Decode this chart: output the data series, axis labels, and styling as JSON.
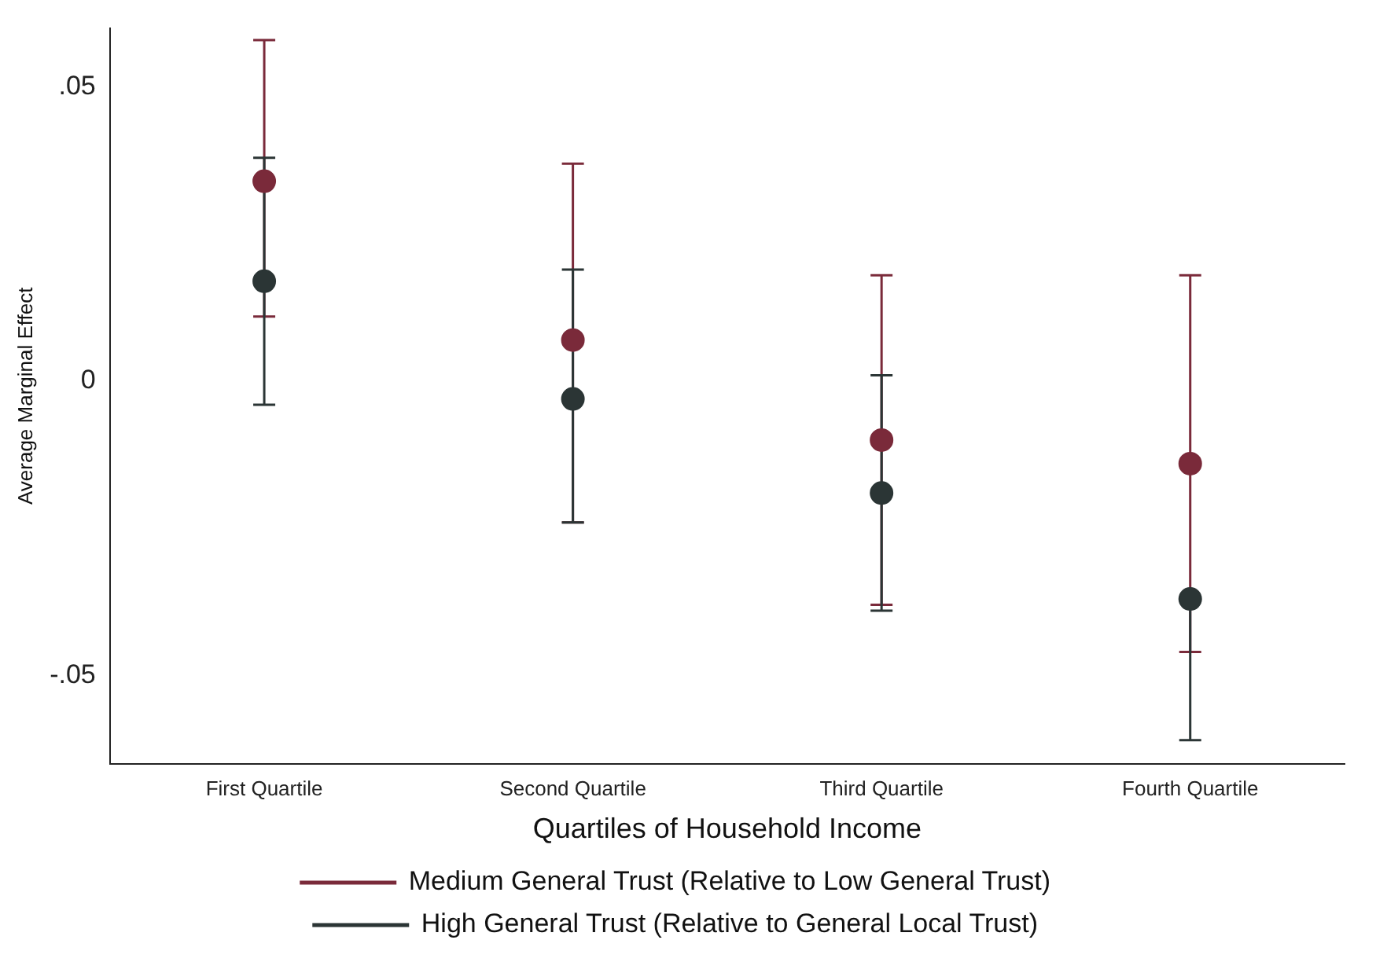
{
  "chart_data": {
    "type": "scatter",
    "xlabel": "Quartiles of Household Income",
    "ylabel": "Average Marginal Effect",
    "categories": [
      "First Quartile",
      "Second Quartile",
      "Third Quartile",
      "Fourth Quartile"
    ],
    "ylim": [
      -0.065,
      0.06
    ],
    "yticks": [
      {
        "value": -0.05,
        "label": "-.05"
      },
      0,
      {
        "value": 0.05,
        "label": ".05"
      }
    ],
    "grid": false,
    "legend": "bottom",
    "marker": "circle",
    "series": [
      {
        "name": "Medium General Trust (Relative to Low General Trust)",
        "color": "#7a2a3a",
        "values": [
          0.034,
          0.007,
          -0.01,
          -0.014
        ],
        "errors": [
          [
            0.011,
            0.058
          ],
          [
            -0.024,
            0.037
          ],
          [
            -0.038,
            0.018
          ],
          [
            -0.046,
            0.018
          ]
        ]
      },
      {
        "name": "High General Trust (Relative to General Local Trust)",
        "color": "#2b3535",
        "values": [
          0.017,
          -0.003,
          -0.019,
          -0.037
        ],
        "errors": [
          [
            -0.004,
            0.038
          ],
          [
            -0.024,
            0.019
          ],
          [
            -0.039,
            0.001
          ],
          [
            -0.061,
            -0.037
          ]
        ]
      }
    ]
  }
}
